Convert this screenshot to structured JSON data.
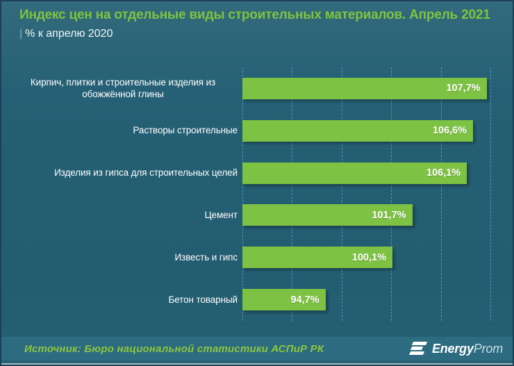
{
  "header": {
    "pipe": "|"
  },
  "chart_data": {
    "type": "bar",
    "orientation": "horizontal",
    "title": "Индекс цен на отдельные виды строительных материалов. Апрель 2021",
    "subtitle": "% к апрелю 2020",
    "categories": [
      "Кирпич, плитки и строительные изделия из обожжённой глины",
      "Растворы строительные",
      "Изделия из гипса для строительных целей",
      "Цемент",
      "Известь и гипс",
      "Бетон товарный"
    ],
    "values": [
      107.7,
      106.6,
      106.1,
      101.7,
      100.1,
      94.7
    ],
    "value_labels": [
      "107,7%",
      "106,6%",
      "106,1%",
      "101,7%",
      "100,1%",
      "94,7%"
    ],
    "unit": "%",
    "xlim": [
      88,
      108
    ],
    "gridline_step": 4,
    "grid": true,
    "legend": "none",
    "bar_color": "#7dc243",
    "background_color": "#245e72",
    "grid_color": "#4d99b5",
    "title_color": "#7dc43f"
  },
  "footer": {
    "source": "Источник: Бюро национальной  статистики АСПиР РК",
    "logo": {
      "energy": "Energy",
      "prom": "Prom"
    }
  }
}
